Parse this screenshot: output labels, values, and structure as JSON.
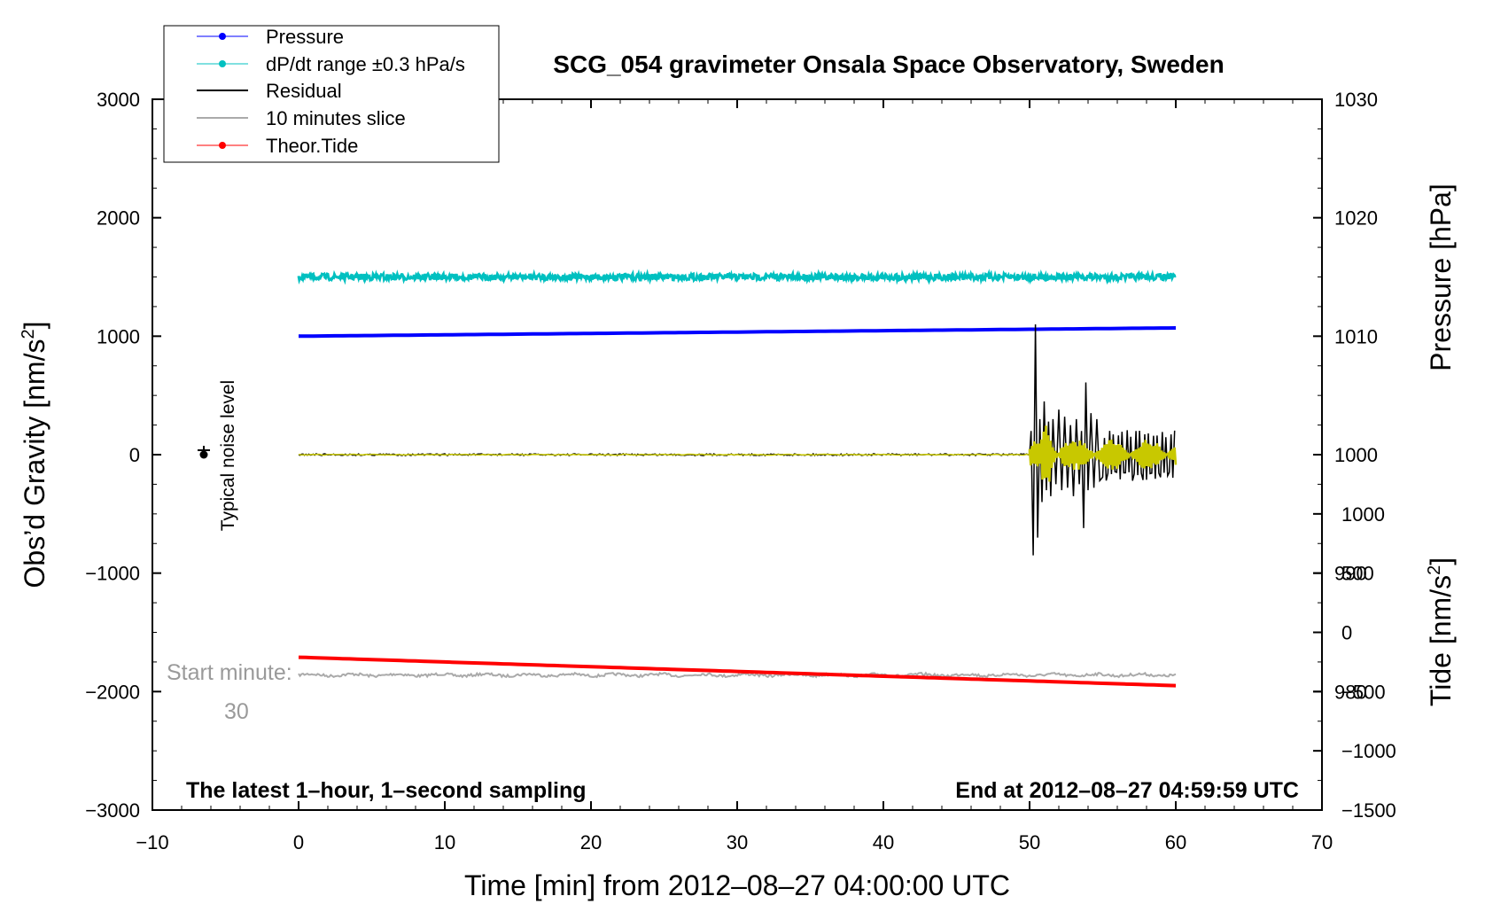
{
  "chart_data": {
    "type": "line",
    "title": "SCG_054 gravimeter Onsala Space Observatory, Sweden",
    "xlabel": "Time [min] from 2012–08–27 04:00:00 UTC",
    "ylabel_left_main": "Obs’d Gravity [nm/s",
    "ylabel_left_sup": "2",
    "ylabel_left_end": "]",
    "ylabel_right_pressure": "Pressure [hPa]",
    "ylabel_right_tide_main": "Tide [nm/s",
    "ylabel_right_tide_sup": "2",
    "ylabel_right_tide_end": "]",
    "xlim": [
      -10,
      70
    ],
    "ylim_left": [
      -3000,
      3000
    ],
    "pressure_axis": {
      "ticks": [
        1030,
        1020,
        1010,
        1000,
        990,
        980
      ],
      "labels": [
        "1030",
        "1020",
        "1010",
        "1000",
        "990",
        "980"
      ]
    },
    "tide_axis": {
      "ticks": [
        1000,
        500,
        0,
        -500,
        -1000,
        -1500
      ],
      "labels": [
        "1000",
        "500",
        "0",
        "−500",
        "−1000",
        "−1500"
      ]
    },
    "x_ticks": [
      -10,
      0,
      10,
      20,
      30,
      40,
      50,
      60,
      70
    ],
    "x_tick_labels": [
      "−10",
      "0",
      "10",
      "20",
      "30",
      "40",
      "50",
      "60",
      "70"
    ],
    "y_ticks": [
      3000,
      2000,
      1000,
      0,
      -1000,
      -2000,
      -3000
    ],
    "y_tick_labels": [
      "3000",
      "2000",
      "1000",
      "0",
      "−1000",
      "−2000",
      "−3000"
    ],
    "series": [
      {
        "name": "Pressure",
        "color": "#0000ff",
        "x": [
          0,
          60
        ],
        "y_hPa": [
          1010.0,
          1010.7
        ]
      },
      {
        "name": "dP/dt range ±0.3 hPa/s",
        "color": "#00c0c0",
        "x": [
          0,
          60
        ],
        "y": [
          1500,
          1500
        ]
      },
      {
        "name": "Residual",
        "color": "#000000",
        "x": [
          0,
          50,
          60
        ],
        "y": [
          0,
          0,
          0
        ],
        "event_start": 50.0,
        "event_peak": 1100,
        "event_trough": -850
      },
      {
        "name": "10 minutes slice",
        "color": "#aaaaaa",
        "x": [
          0,
          60
        ],
        "y": [
          -1860,
          -1860
        ]
      },
      {
        "name": "Theor.Tide",
        "color": "#ff0000",
        "x": [
          0,
          60
        ],
        "y": [
          -1710,
          -1950
        ]
      }
    ],
    "filtered_trace_color": "#c8c800",
    "noise_marker": {
      "x": -7,
      "y": 0,
      "label": "Typical noise level"
    },
    "start_minute_label": "Start minute:",
    "start_minute_value": "30",
    "note_left": "The latest 1–hour, 1–second sampling",
    "note_right": "End at 2012–08–27 04:59:59 UTC"
  },
  "legend": {
    "items": [
      {
        "label": "Pressure",
        "color": "#0000ff",
        "marker": true
      },
      {
        "label": "dP/dt range ±0.3 hPa/s",
        "color": "#00c0c0",
        "marker": true
      },
      {
        "label": "Residual",
        "color": "#000000",
        "marker": false
      },
      {
        "label": "10 minutes slice",
        "color": "#aaaaaa",
        "marker": false
      },
      {
        "label": "Theor.Tide",
        "color": "#ff0000",
        "marker": true
      }
    ]
  }
}
